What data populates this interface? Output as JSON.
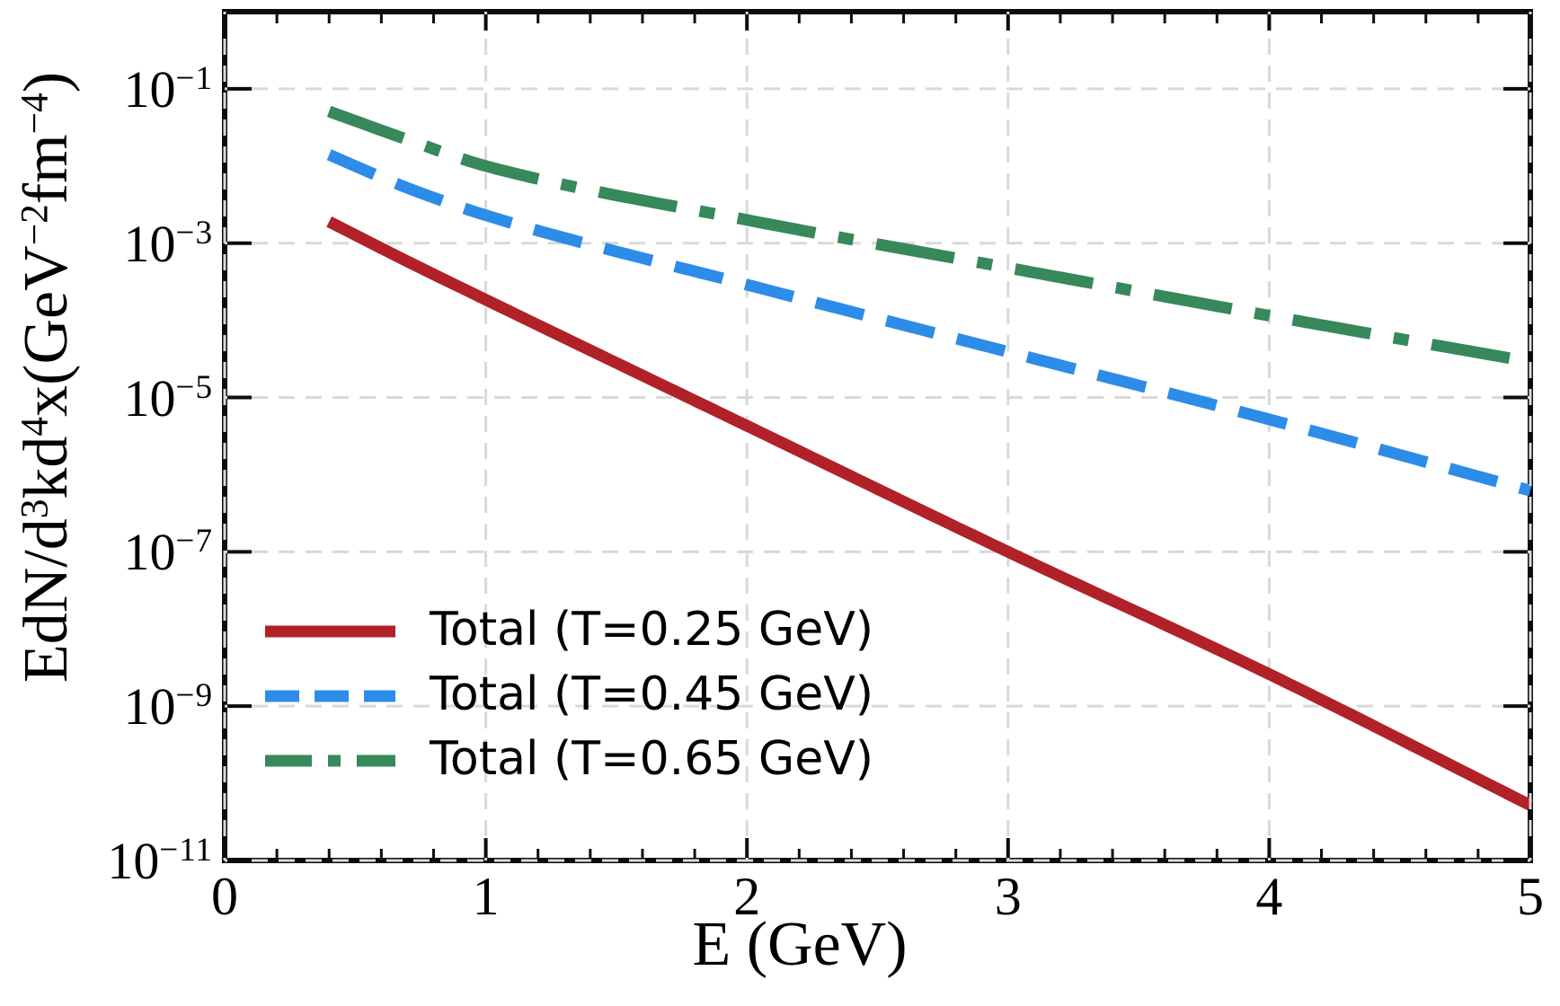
{
  "figure": {
    "background": "#ffffff",
    "frame_color": "#0d0d0d",
    "grid_color": "#d9d9d9",
    "text_color": "#000000"
  },
  "chart_data": {
    "type": "line",
    "title": "",
    "xlabel": "E (GeV)",
    "ylabel_plain": "EdN/d3kd4x(GeV-2fm-4)",
    "ylabel_segments": [
      {
        "t": "EdN/d"
      },
      {
        "t": "3",
        "sup": true
      },
      {
        "t": "kd"
      },
      {
        "t": "4",
        "sup": true
      },
      {
        "t": "x(GeV"
      },
      {
        "t": "−2",
        "sup": true
      },
      {
        "t": "fm"
      },
      {
        "t": "−4",
        "sup": true
      },
      {
        "t": ")"
      }
    ],
    "xlim": [
      0,
      5
    ],
    "ylim": [
      1e-11,
      1
    ],
    "x_major_ticks": [
      0,
      1,
      2,
      3,
      4,
      5
    ],
    "x_minor_step": 0.2,
    "y_tick_exponents": [
      -1,
      -3,
      -5,
      -7,
      -9,
      -11
    ],
    "grid": true,
    "grid_style": "dashed",
    "legend_position": "lower-left-inside",
    "legend_frame": false,
    "series": [
      {
        "name": "Total (T=0.25 GeV)",
        "slug": "total-t-0p25",
        "color": "#b02128",
        "style": "solid",
        "x": [
          0.4,
          0.7,
          1,
          2,
          3,
          4,
          5
        ],
        "y": [
          0.0019,
          0.00058,
          0.000185,
          4.3e-06,
          1e-07,
          2.6e-09,
          5.2e-11
        ]
      },
      {
        "name": "Total (T=0.45 GeV)",
        "slug": "total-t-0p45",
        "color": "#2d8ce8",
        "style": "dashed",
        "x": [
          0.4,
          0.7,
          1,
          2,
          3,
          4,
          5
        ],
        "y": [
          0.014,
          0.0052,
          0.0023,
          0.00029,
          3.9e-05,
          5.2e-06,
          6.2e-07
        ]
      },
      {
        "name": "Total (T=0.65 GeV)",
        "slug": "total-t-0p65",
        "color": "#37885a",
        "style": "dashdot",
        "x": [
          0.4,
          0.7,
          1,
          2,
          3,
          4,
          5
        ],
        "y": [
          0.051,
          0.022,
          0.01,
          0.002,
          0.00048,
          0.000115,
          2.9e-05
        ]
      }
    ]
  }
}
